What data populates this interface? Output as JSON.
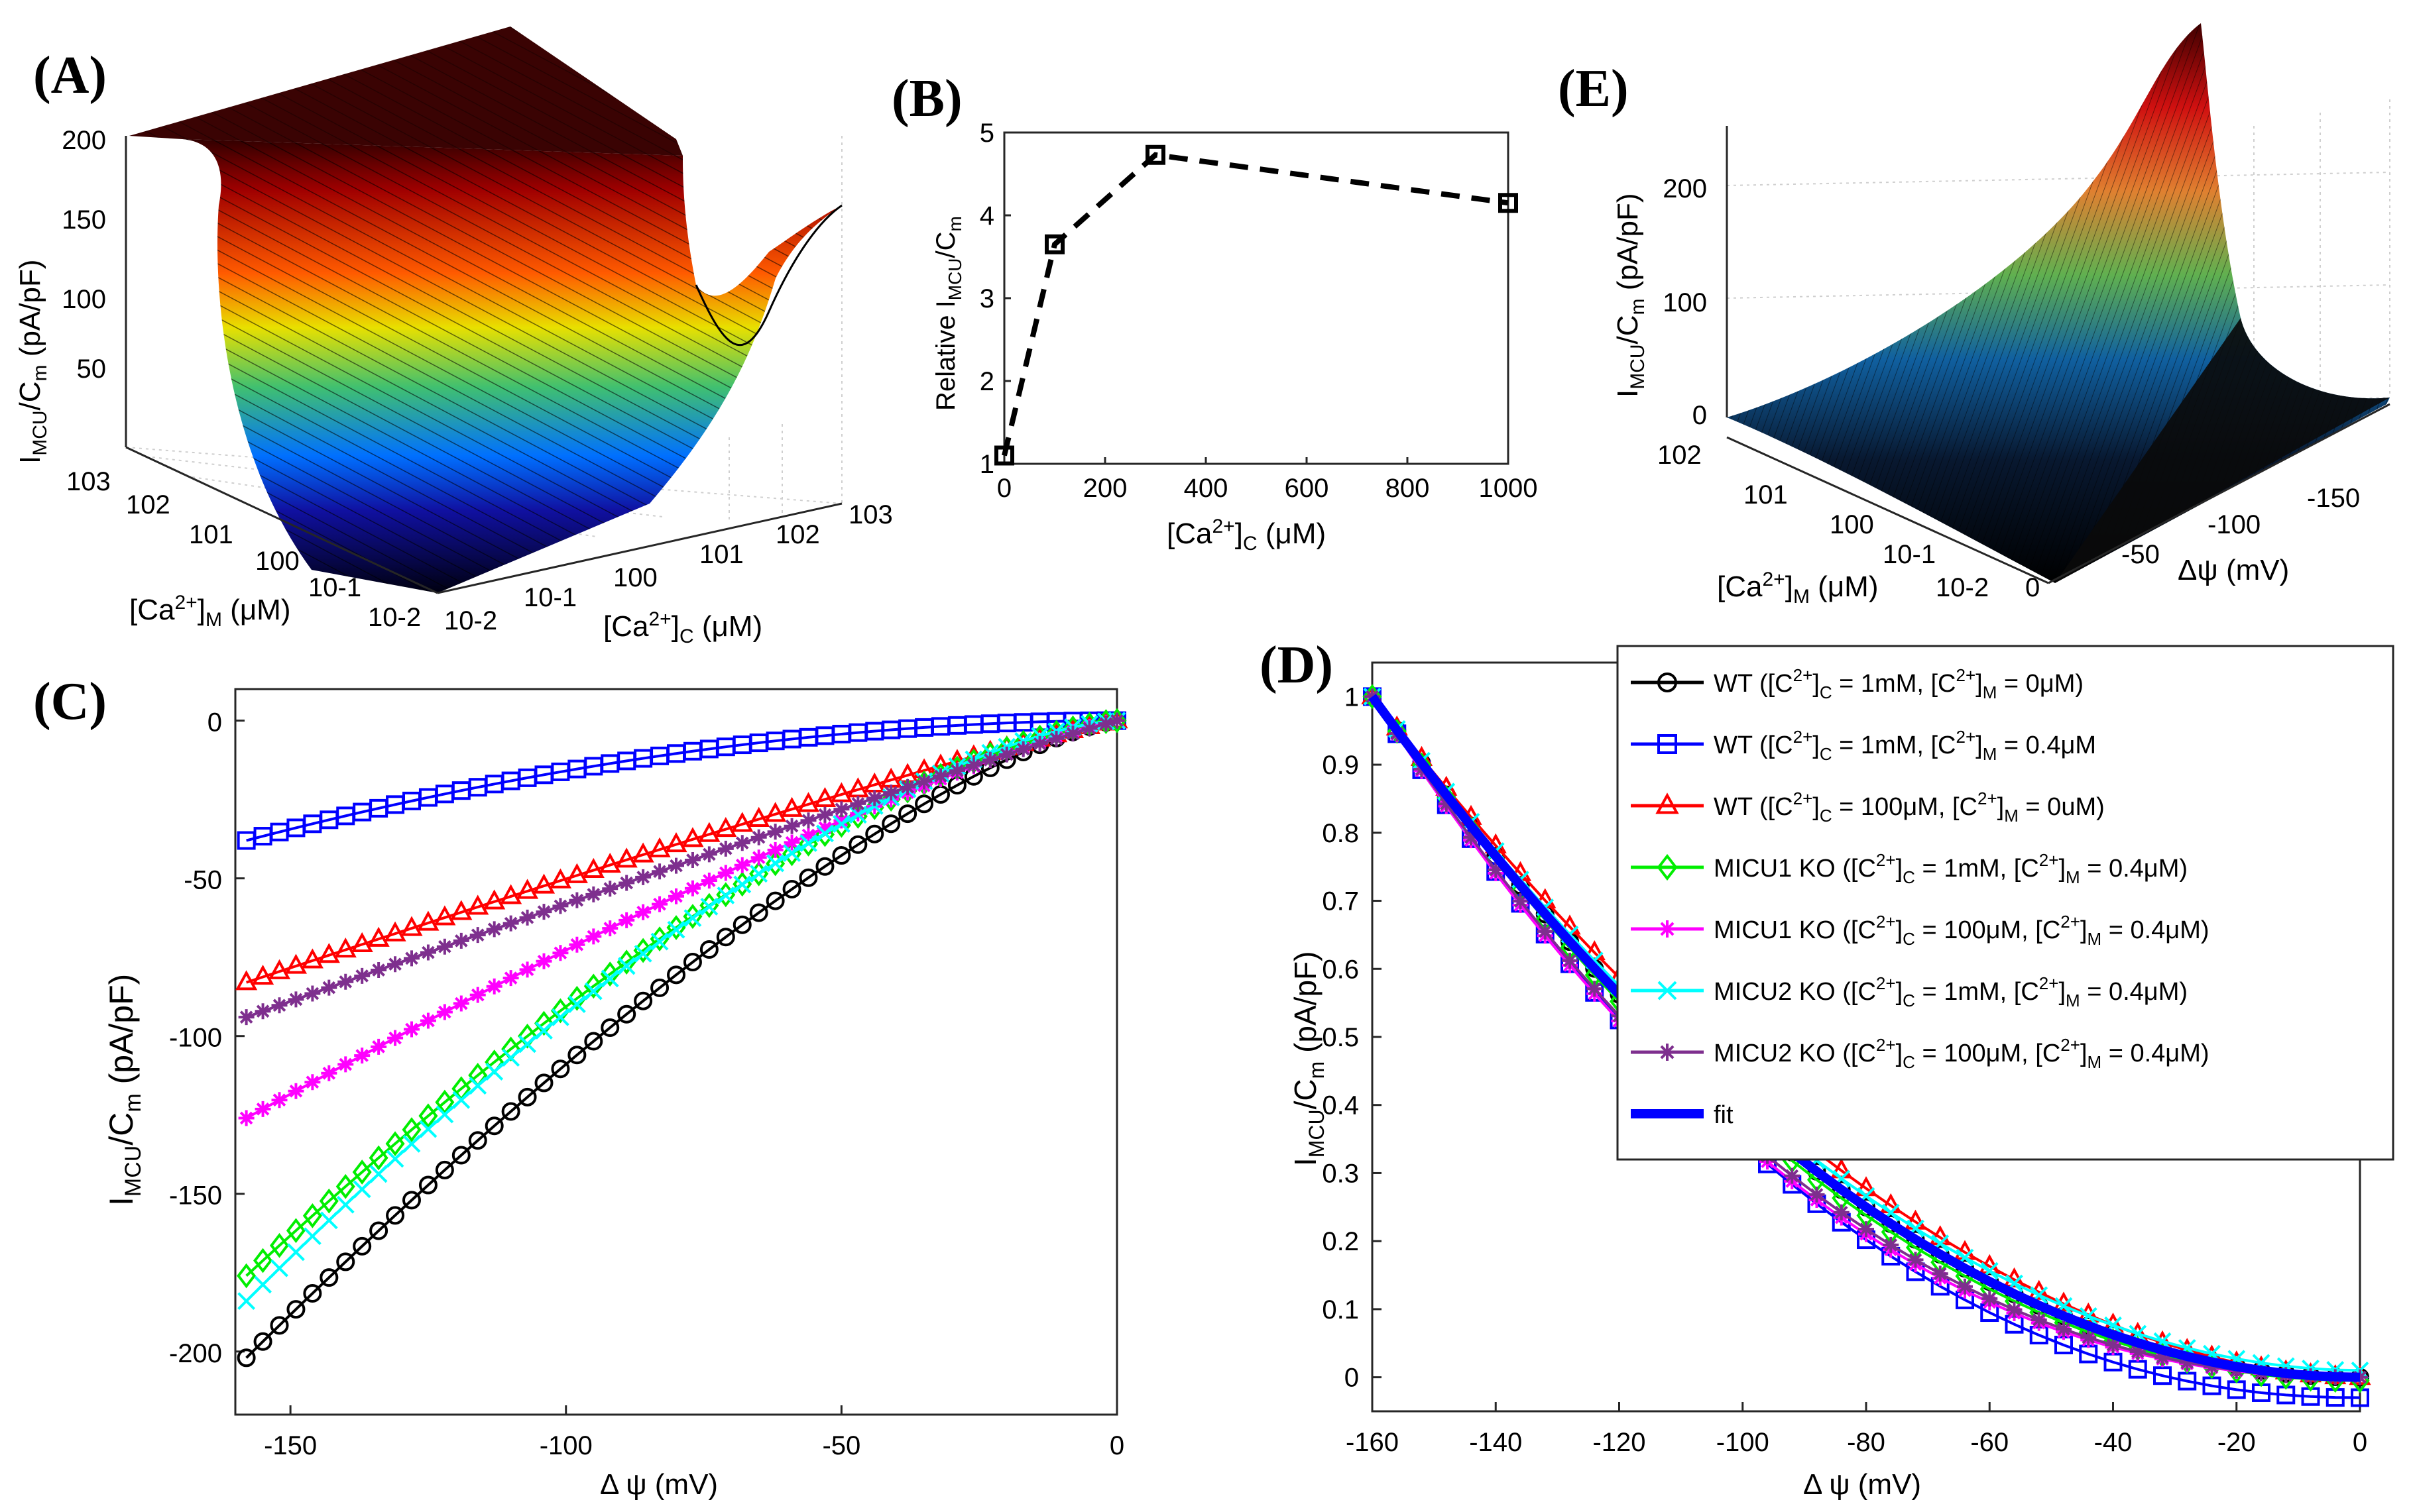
{
  "chart_data": [
    {
      "id": "A",
      "panel_label": "(A)",
      "type": "surface3d",
      "xlabel": "[Ca2+]C (μM)",
      "ylabel": "[Ca2+]M (μM)",
      "zlabel": "IMCU/Cm (pA/pF)",
      "x_ticks": [
        "10-2",
        "10-1",
        "100",
        "101",
        "102",
        "103"
      ],
      "y_ticks": [
        "103",
        "102",
        "101",
        "100",
        "10-1",
        "10-2"
      ],
      "z_ticks": [
        "200",
        "150",
        "100",
        "50"
      ],
      "zlim": [
        0,
        200
      ],
      "colormap": "jet-dark"
    },
    {
      "id": "B",
      "panel_label": "(B)",
      "type": "line",
      "xlabel": "[Ca2+]C (μM)",
      "ylabel": "Relative IMCU/Cm",
      "x": [
        0,
        100,
        300,
        1000
      ],
      "y": [
        1.1,
        3.65,
        4.73,
        4.15
      ],
      "xlim": [
        0,
        1000
      ],
      "ylim": [
        1,
        5
      ],
      "x_ticks": [
        "0",
        "200",
        "400",
        "600",
        "800",
        "1000"
      ],
      "y_ticks": [
        "1",
        "2",
        "3",
        "4",
        "5"
      ],
      "style": "dashed-black-square"
    },
    {
      "id": "E",
      "panel_label": "(E)",
      "type": "surface3d",
      "xlabel": "Δψ (mV)",
      "ylabel": "[Ca2+]M (μM)",
      "zlabel": "IMCU/Cm (pA/pF)",
      "x_ticks": [
        "0",
        "-50",
        "-100",
        "-150"
      ],
      "y_ticks": [
        "102",
        "101",
        "100",
        "10-1",
        "10-2"
      ],
      "z_ticks": [
        "200",
        "100",
        "0"
      ],
      "zlim": [
        0,
        250
      ],
      "colormap": "jet-dark"
    },
    {
      "id": "C",
      "panel_label": "(C)",
      "type": "line",
      "xlabel": "Δ ψ (mV)",
      "ylabel": "IMCU/Cm (pA/pF)",
      "xlim": [
        -160,
        0
      ],
      "ylim": [
        -220,
        10
      ],
      "x_ticks": [
        "-150",
        "-100",
        "-50",
        "0"
      ],
      "y_ticks": [
        "-200",
        "-150",
        "-100",
        "-50",
        "0"
      ],
      "series": [
        {
          "name": "WT 1mM/0",
          "color": "#000000",
          "marker": "circle",
          "v0": -202,
          "p": 1.35
        },
        {
          "name": "WT 1mM/0.4",
          "color": "#0000ff",
          "marker": "square",
          "v0": -38,
          "p": 1.9
        },
        {
          "name": "WT 100/0",
          "color": "#ff0000",
          "marker": "triangle",
          "v0": -83,
          "p": 1.1
        },
        {
          "name": "MICU1 KO 1mM/0.4",
          "color": "#00ee00",
          "marker": "diamond",
          "v0": -176,
          "p": 1.45
        },
        {
          "name": "MICU1 KO 100/0.4",
          "color": "#ff00ff",
          "marker": "star",
          "v0": -126,
          "p": 1.2
        },
        {
          "name": "MICU2 KO 1mM/0.4",
          "color": "#00ffff",
          "marker": "x",
          "v0": -184,
          "p": 1.5
        },
        {
          "name": "MICU2 KO 100/0.4",
          "color": "#7e2f8e",
          "marker": "star",
          "v0": -94,
          "p": 1.05
        }
      ]
    },
    {
      "id": "D",
      "panel_label": "(D)",
      "type": "line",
      "xlabel": "Δ ψ (mV)",
      "ylabel": "IMCU/Cm (pA/pF)",
      "xlim": [
        -160,
        0
      ],
      "ylim": [
        -0.05,
        1.05
      ],
      "x_ticks": [
        "-160",
        "-140",
        "-120",
        "-100",
        "-80",
        "-60",
        "-40",
        "-20",
        "0"
      ],
      "y_ticks": [
        "0",
        "0.1",
        "0.2",
        "0.3",
        "0.4",
        "0.5",
        "0.6",
        "0.7",
        "0.8",
        "0.9",
        "1"
      ],
      "series": [
        {
          "name": "WT ([C2+]C = 1mM, [C2+]M = 0μM)",
          "color": "#000000",
          "marker": "circle",
          "p": 2.0,
          "off": 0.0
        },
        {
          "name": "WT ([C2+]C = 1mM, [C2+]M = 0.4μM)",
          "color": "#0000ff",
          "marker": "square",
          "p": 2.15,
          "off": -0.03
        },
        {
          "name": "WT ([C2+]C = 100μM, [C2+]M = 0uM)",
          "color": "#ff0000",
          "marker": "triangle",
          "p": 1.85,
          "off": 0.0
        },
        {
          "name": "MICU1 KO ([C2+]C = 1mM, [C2+]M = 0.4μM)",
          "color": "#00ee00",
          "marker": "diamond",
          "p": 2.05,
          "off": -0.005
        },
        {
          "name": "MICU1 KO ([C2+]C = 100μM, [C2+]M = 0.4μM)",
          "color": "#ff00ff",
          "marker": "star",
          "p": 2.25,
          "off": 0.0
        },
        {
          "name": "MICU2 KO ([C2+]C = 1mM, [C2+]M = 0.4μM)",
          "color": "#00ffff",
          "marker": "x",
          "p": 1.95,
          "off": 0.01
        },
        {
          "name": "MICU2 KO ([C2+]C = 100μM, [C2+]M = 0.4μM)",
          "color": "#7e2f8e",
          "marker": "star",
          "p": 2.2,
          "off": 0.0
        },
        {
          "name": "fit",
          "color": "#0000ff",
          "marker": "none",
          "p": 2.0,
          "off": 0.0
        }
      ]
    }
  ],
  "legend_D": [
    {
      "pre": "WT ([C",
      "sup1": "2+",
      "mid1": "]",
      "sub1": "C",
      "mid2": " = 1mM, [C",
      "sup2": "2+",
      "mid3": "]",
      "sub2": "M",
      "post": " = 0μM)"
    },
    {
      "pre": "WT ([C",
      "sup1": "2+",
      "mid1": "]",
      "sub1": "C",
      "mid2": " = 1mM, [C",
      "sup2": "2+",
      "mid3": "]",
      "sub2": "M",
      "post": " = 0.4μM"
    },
    {
      "pre": "WT ([C",
      "sup1": "2+",
      "mid1": "]",
      "sub1": "C",
      "mid2": " = 100μM, [C",
      "sup2": "2+",
      "mid3": "]",
      "sub2": "M",
      "post": " = 0uM)"
    },
    {
      "pre": "MICU1 KO ([C",
      "sup1": "2+",
      "mid1": "]",
      "sub1": "C",
      "mid2": " = 1mM, [C",
      "sup2": "2+",
      "mid3": "]",
      "sub2": "M",
      "post": " = 0.4μM)"
    },
    {
      "pre": "MICU1 KO ([C",
      "sup1": "2+",
      "mid1": "]",
      "sub1": "C",
      "mid2": " = 100μM, [C",
      "sup2": "2+",
      "mid3": "]",
      "sub2": "M",
      "post": " = 0.4μM)"
    },
    {
      "pre": "MICU2 KO ([C",
      "sup1": "2+",
      "mid1": "]",
      "sub1": "C",
      "mid2": " = 1mM, [C",
      "sup2": "2+",
      "mid3": "]",
      "sub2": "M",
      "post": " = 0.4μM)"
    },
    {
      "pre": "MICU2 KO ([C",
      "sup1": "2+",
      "mid1": "]",
      "sub1": "C",
      "mid2": " = 100μM, [C",
      "sup2": "2+",
      "mid3": "]",
      "sub2": "M",
      "post": " = 0.4μM)"
    },
    {
      "pre": "fit",
      "sup1": "",
      "mid1": "",
      "sub1": "",
      "mid2": "",
      "sup2": "",
      "mid3": "",
      "sub2": "",
      "post": ""
    }
  ],
  "text_parts": {
    "I": "I",
    "MCU": "MCU",
    "Cm_C": "/C",
    "m": "m",
    "pApF": " (pA/pF)",
    "relative": "Relative I",
    "ca_open": "[Ca",
    "two_plus": "2+",
    "close": "]",
    "C": "C",
    "M": "M",
    "um": " (μM)",
    "dpsi": "Δ ψ (mV)",
    "dpsi_e": "Δψ (mV)"
  }
}
